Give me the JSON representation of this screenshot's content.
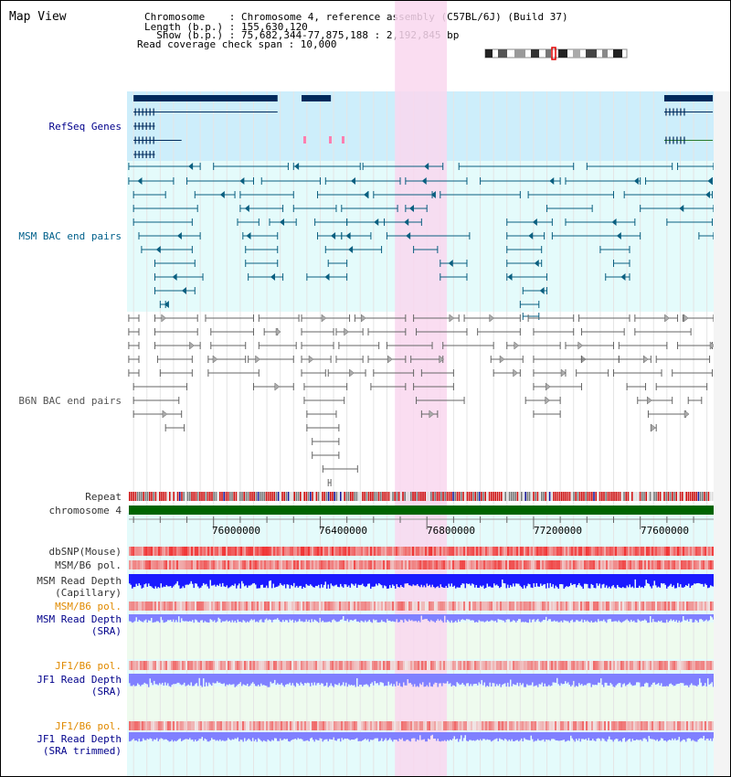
{
  "header": {
    "title": "Map View",
    "info_lines": [
      "Chromosome    : Chromosome 4, reference assembly (C57BL/6J) (Build 37)",
      "Length (b.p.) : 155,630,120",
      "  Show (b.p.) : 75,682,344-77,875,188 : 2,192,845 bp",
      "Read coverage check span : 10,000"
    ]
  },
  "labels": {
    "refseq": "RefSeq Genes",
    "msm_bac": "MSM BAC end pairs",
    "b6n_bac": "B6N BAC end pairs",
    "repeat": "Repeat",
    "chromosome": "chromosome 4",
    "dbsnp": "dbSNP(Mouse)",
    "msm_b6_pol": "MSM/B6 pol.",
    "msm_read_depth_cap_1": "MSM Read Depth",
    "msm_read_depth_cap_2": "(Capillary)",
    "msm_b6_pol_2": "MSM/B6 pol.",
    "msm_read_depth_sra_1": "MSM Read Depth",
    "msm_read_depth_sra_2": "(SRA)",
    "jf1_b6_pol": "JF1/B6 pol.",
    "jf1_read_depth_1": "JF1 Read Depth",
    "jf1_read_depth_2": "(SRA)",
    "jf1_b6_pol_2": "JF1/B6 pol.",
    "jf1_trim_1": "JF1 Read Depth",
    "jf1_trim_2": "(SRA trimmed)"
  },
  "axis": {
    "ticks": [
      {
        "label": "76000000",
        "pos": 76000000
      },
      {
        "label": "76400000",
        "pos": 76400000
      },
      {
        "label": "76800000",
        "pos": 76800000
      },
      {
        "label": "77200000",
        "pos": 77200000
      },
      {
        "label": "77600000",
        "pos": 77600000
      }
    ],
    "range_start": 75682344,
    "range_end": 77875188,
    "highlight_start": 76680000,
    "highlight_end": 76875000
  },
  "colors": {
    "refseq_bg": "#cdeefb",
    "msm_bg": "#e4fbfb",
    "highlight": "#f9d7ef",
    "gene": "#002a5c",
    "msm_pair": "#0a5f80",
    "b6n_pair": "#666666",
    "chrom_band": "#006400",
    "read_depth_cap": "#1a1aff",
    "read_depth_sra": "#8080ff",
    "pol_red": "#e01010",
    "pol_light": "#ffb0b0"
  },
  "refseq_genes": [
    {
      "row": 0,
      "start": 75700000,
      "end": 76240000,
      "thick": true
    },
    {
      "row": 0,
      "start": 76330000,
      "end": 76440000,
      "thick": true
    },
    {
      "row": 0,
      "start": 77690000,
      "end": 77872000,
      "thick": true
    },
    {
      "row": 1,
      "start": 75700000,
      "end": 76240000
    },
    {
      "row": 1,
      "start": 77690000,
      "end": 77872000
    },
    {
      "row": 2,
      "start": 75700000,
      "end": 75780000
    },
    {
      "row": 3,
      "start": 75700000,
      "end": 75880000
    },
    {
      "row": 3,
      "start": 77690000,
      "end": 77872000
    },
    {
      "row": 4,
      "start": 75700000,
      "end": 75780000
    }
  ],
  "msm_pairs": [
    [
      75682000,
      75950000
    ],
    [
      76000000,
      76280000
    ],
    [
      76300000,
      76550000
    ],
    [
      76560000,
      76860000
    ],
    [
      76920000,
      77350000
    ],
    [
      77400000,
      77720000
    ],
    [
      77740000,
      77875000
    ],
    [
      75682000,
      75850000
    ],
    [
      75900000,
      76150000
    ],
    [
      76180000,
      76400000
    ],
    [
      76420000,
      76700000
    ],
    [
      76720000,
      76950000
    ],
    [
      77000000,
      77300000
    ],
    [
      77320000,
      77600000
    ],
    [
      77620000,
      77870000
    ],
    [
      75700000,
      75820000
    ],
    [
      75930000,
      76080000
    ],
    [
      76100000,
      76300000
    ],
    [
      76390000,
      76580000
    ],
    [
      76600000,
      76820000
    ],
    [
      76850000,
      77150000
    ],
    [
      77180000,
      77500000
    ],
    [
      77540000,
      77870000
    ],
    [
      75700000,
      75940000
    ],
    [
      76100000,
      76260000
    ],
    [
      76300000,
      76460000
    ],
    [
      76480000,
      76690000
    ],
    [
      76720000,
      76800000
    ],
    [
      77250000,
      77420000
    ],
    [
      77600000,
      77875000
    ],
    [
      75700000,
      75920000
    ],
    [
      76090000,
      76170000
    ],
    [
      76210000,
      76310000
    ],
    [
      76380000,
      76500000
    ],
    [
      76500000,
      76640000
    ],
    [
      76640000,
      76780000
    ],
    [
      77100000,
      77270000
    ],
    [
      77320000,
      77580000
    ],
    [
      77700000,
      77870000
    ],
    [
      75720000,
      75950000
    ],
    [
      76110000,
      76240000
    ],
    [
      76390000,
      76480000
    ],
    [
      76480000,
      76590000
    ],
    [
      76650000,
      76960000
    ],
    [
      77100000,
      77240000
    ],
    [
      77270000,
      77600000
    ],
    [
      77820000,
      77875000
    ],
    [
      75730000,
      75920000
    ],
    [
      76120000,
      76240000
    ],
    [
      76420000,
      76630000
    ],
    [
      76750000,
      76840000
    ],
    [
      77100000,
      77230000
    ],
    [
      77450000,
      77560000
    ],
    [
      75780000,
      75930000
    ],
    [
      76120000,
      76240000
    ],
    [
      76430000,
      76500000
    ],
    [
      76850000,
      76950000
    ],
    [
      77100000,
      77230000
    ],
    [
      77500000,
      77560000
    ],
    [
      75780000,
      75960000
    ],
    [
      76130000,
      76260000
    ],
    [
      76350000,
      76500000
    ],
    [
      76850000,
      76950000
    ],
    [
      77100000,
      77250000
    ],
    [
      77470000,
      77560000
    ],
    [
      75780000,
      75930000
    ],
    [
      77160000,
      77250000
    ],
    [
      75800000,
      75820000
    ],
    [
      77150000,
      77220000
    ],
    [
      77160000,
      77220000
    ]
  ],
  "b6n_pairs": [
    [
      75682000,
      75720000
    ],
    [
      75780000,
      75940000
    ],
    [
      75970000,
      76150000
    ],
    [
      76170000,
      76320000
    ],
    [
      76330000,
      76510000
    ],
    [
      76530000,
      76720000
    ],
    [
      76750000,
      76920000
    ],
    [
      76940000,
      77150000
    ],
    [
      77180000,
      77350000
    ],
    [
      77370000,
      77560000
    ],
    [
      77580000,
      77740000
    ],
    [
      77760000,
      77875000
    ],
    [
      75682000,
      75720000
    ],
    [
      75780000,
      75940000
    ],
    [
      75990000,
      76150000
    ],
    [
      76190000,
      76240000
    ],
    [
      76330000,
      76450000
    ],
    [
      76460000,
      76560000
    ],
    [
      76580000,
      76720000
    ],
    [
      76760000,
      76950000
    ],
    [
      76990000,
      77150000
    ],
    [
      77200000,
      77350000
    ],
    [
      77380000,
      77540000
    ],
    [
      77580000,
      77790000
    ],
    [
      75682000,
      75720000
    ],
    [
      75780000,
      75950000
    ],
    [
      75990000,
      76120000
    ],
    [
      76170000,
      76310000
    ],
    [
      76330000,
      76450000
    ],
    [
      76470000,
      76620000
    ],
    [
      76650000,
      76820000
    ],
    [
      76860000,
      77050000
    ],
    [
      77100000,
      77300000
    ],
    [
      77320000,
      77500000
    ],
    [
      77520000,
      77700000
    ],
    [
      77740000,
      77870000
    ],
    [
      75682000,
      75720000
    ],
    [
      75790000,
      75920000
    ],
    [
      75980000,
      76120000
    ],
    [
      76130000,
      76300000
    ],
    [
      76330000,
      76440000
    ],
    [
      76460000,
      76560000
    ],
    [
      76580000,
      76720000
    ],
    [
      76740000,
      76860000
    ],
    [
      77040000,
      77160000
    ],
    [
      77200000,
      77380000
    ],
    [
      77380000,
      77520000
    ],
    [
      77520000,
      77640000
    ],
    [
      77660000,
      77860000
    ],
    [
      75682000,
      75720000
    ],
    [
      75800000,
      75920000
    ],
    [
      75980000,
      76170000
    ],
    [
      76330000,
      76420000
    ],
    [
      76430000,
      76570000
    ],
    [
      76600000,
      76750000
    ],
    [
      76780000,
      76900000
    ],
    [
      77050000,
      77150000
    ],
    [
      77200000,
      77320000
    ],
    [
      77360000,
      77480000
    ],
    [
      77500000,
      77680000
    ],
    [
      77720000,
      77870000
    ],
    [
      75700000,
      75900000
    ],
    [
      76150000,
      76300000
    ],
    [
      76340000,
      76500000
    ],
    [
      76590000,
      76720000
    ],
    [
      76750000,
      76900000
    ],
    [
      77200000,
      77380000
    ],
    [
      77550000,
      77620000
    ],
    [
      77660000,
      77850000
    ],
    [
      75700000,
      75870000
    ],
    [
      76340000,
      76490000
    ],
    [
      76760000,
      76940000
    ],
    [
      77170000,
      77300000
    ],
    [
      77590000,
      77720000
    ],
    [
      77780000,
      77830000
    ],
    [
      75700000,
      75880000
    ],
    [
      76350000,
      76460000
    ],
    [
      76780000,
      76840000
    ],
    [
      77200000,
      77300000
    ],
    [
      77630000,
      77770000
    ],
    [
      75820000,
      75890000
    ],
    [
      76350000,
      76470000
    ],
    [
      77640000,
      77660000
    ],
    [
      76370000,
      76470000
    ],
    [
      76370000,
      76470000
    ],
    [
      76410000,
      76540000
    ],
    [
      76430000,
      76440000
    ]
  ],
  "depth_tracks": [
    {
      "key": "cap",
      "baseline": 0.75
    },
    {
      "key": "sra",
      "baseline": 0.45
    },
    {
      "key": "jf1",
      "baseline": 0.65
    },
    {
      "key": "jf1trim",
      "baseline": 0.45
    }
  ]
}
